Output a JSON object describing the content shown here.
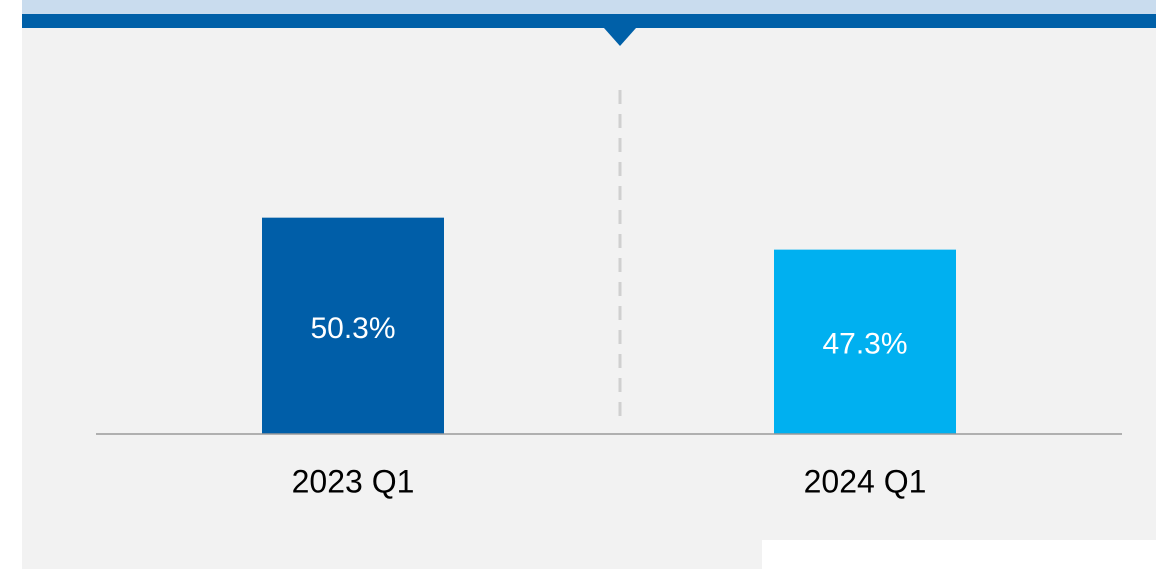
{
  "chart_data": {
    "type": "bar",
    "categories": [
      "2023 Q1",
      "2024 Q1"
    ],
    "values": [
      50.3,
      47.3
    ],
    "value_labels": [
      "50.3%",
      "47.3%"
    ],
    "colors": [
      "#005ea8",
      "#00b0f0"
    ],
    "ylim": [
      30,
      65
    ]
  }
}
